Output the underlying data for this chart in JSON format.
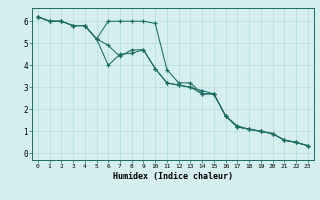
{
  "xlabel": "Humidex (Indice chaleur)",
  "background_color": "#d4efed",
  "grid_color": "#b8dbd8",
  "line_color": "#1a6b62",
  "xlim": [
    -0.5,
    23.5
  ],
  "ylim": [
    -0.3,
    6.6
  ],
  "xticks": [
    0,
    1,
    2,
    3,
    4,
    5,
    6,
    7,
    8,
    9,
    10,
    11,
    12,
    13,
    14,
    15,
    16,
    17,
    18,
    19,
    20,
    21,
    22,
    23
  ],
  "yticks": [
    0,
    1,
    2,
    3,
    4,
    5,
    6
  ],
  "series": [
    [
      6.2,
      6.0,
      6.0,
      5.8,
      5.8,
      5.2,
      6.0,
      6.0,
      6.0,
      6.0,
      5.9,
      3.8,
      3.2,
      3.2,
      2.7,
      2.7,
      1.7,
      1.2,
      1.1,
      1.0,
      0.9,
      0.6,
      0.5,
      0.35
    ],
    [
      6.2,
      6.0,
      6.0,
      5.8,
      5.8,
      5.2,
      4.9,
      4.4,
      4.7,
      4.7,
      3.85,
      3.2,
      3.1,
      3.0,
      2.7,
      2.7,
      1.7,
      1.2,
      1.1,
      1.0,
      0.9,
      0.6,
      0.5,
      0.35
    ],
    [
      6.2,
      6.0,
      6.0,
      5.8,
      5.8,
      5.2,
      4.0,
      4.5,
      4.55,
      4.7,
      3.85,
      3.2,
      3.1,
      3.0,
      2.85,
      2.7,
      1.7,
      1.25,
      1.1,
      1.0,
      0.9,
      0.6,
      0.5,
      0.35
    ]
  ]
}
